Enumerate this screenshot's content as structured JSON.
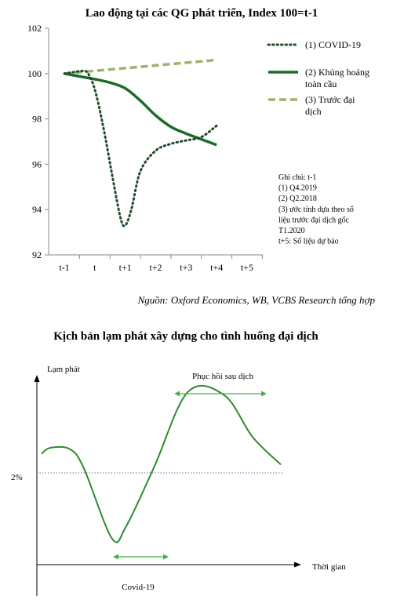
{
  "chart_data": [
    {
      "type": "line",
      "title": "Lao động tại các QG phát triển, Index 100=t-1",
      "categories": [
        "t-1",
        "t",
        "t+1",
        "t+2",
        "t+3",
        "t+4",
        "t+5"
      ],
      "ylim": [
        92,
        102
      ],
      "yticks": [
        92,
        94,
        96,
        98,
        100,
        102
      ],
      "grid": false,
      "legend_position": "right",
      "series": [
        {
          "name": "(1) COVID-19",
          "style": "dotted",
          "color": "#1e4d2b",
          "x": [
            0,
            0.25,
            0.5,
            0.75,
            1,
            1.3,
            1.6,
            1.85,
            2,
            2.2,
            2.5,
            3,
            3.5,
            4,
            4.5,
            5
          ],
          "y": [
            100,
            100.05,
            100.1,
            100.05,
            99.3,
            97.5,
            95.3,
            93.6,
            93.3,
            94.0,
            95.7,
            96.6,
            96.9,
            97.05,
            97.2,
            97.7
          ]
        },
        {
          "name": "(2) Khủng hoảng toàn cầu",
          "style": "solid",
          "color": "#1e6a2a",
          "x": [
            0,
            1,
            1.5,
            2,
            2.5,
            3,
            3.5,
            4,
            4.5,
            5
          ],
          "y": [
            100,
            99.75,
            99.6,
            99.35,
            98.8,
            98.15,
            97.65,
            97.35,
            97.1,
            96.85
          ]
        },
        {
          "name": "(3) Trước đại dịch",
          "style": "dashed",
          "color": "#9db36b",
          "x": [
            0,
            5
          ],
          "y": [
            100,
            100.6
          ]
        }
      ],
      "notes": [
        "Ghi chú: t-1",
        "(1) Q4.2019",
        "(2) Q2.2018",
        "(3) ước tính dựa theo số",
        "liệu trước đại dịch gốc",
        "T1.2020",
        "t+5: Số liệu dự báo"
      ]
    },
    {
      "type": "line",
      "title": "Kịch bản lạm phát xây dựng cho tình huống đại dịch",
      "ylabel": "Lạm phát",
      "xlabel": "Thời gian",
      "reference_line_label": "2%",
      "annotations": [
        "Phục hồi sau dịch",
        "Covid-19"
      ],
      "color": "#2e8b2e",
      "x": [
        0,
        0.3,
        1.0,
        1.5,
        2.5,
        3.0,
        4.0,
        5.2,
        6.5,
        7.5,
        8.5
      ],
      "y": [
        1.6,
        2.1,
        2.0,
        0.4,
        -5.5,
        -4.5,
        0.5,
        6.8,
        6.5,
        3.0,
        0.7
      ]
    }
  ],
  "source": "Nguồn: Oxford Economics, WB, VCBS Research tổng hợp"
}
